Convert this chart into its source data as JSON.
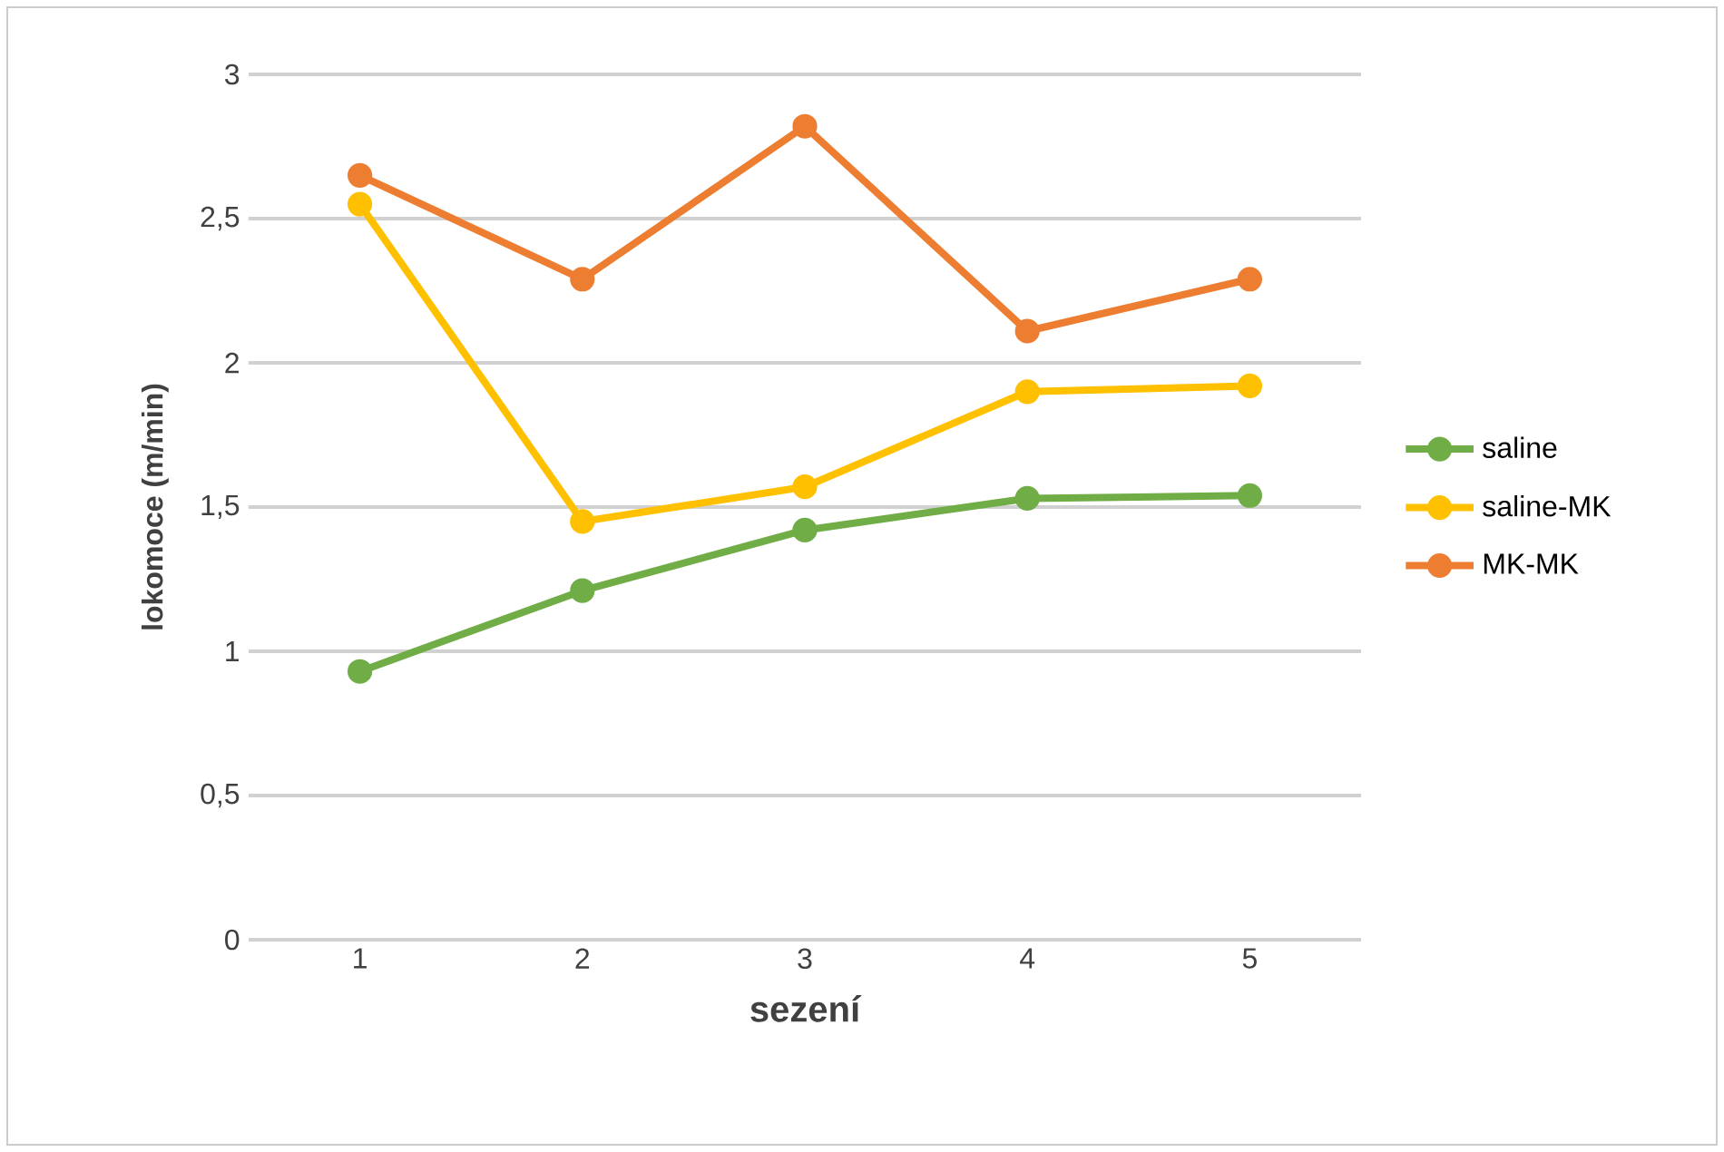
{
  "chart_data": {
    "type": "line",
    "xlabel": "sezení",
    "ylabel": "lokomoce (m/min)",
    "categories": [
      "1",
      "2",
      "3",
      "4",
      "5"
    ],
    "series": [
      {
        "name": "saline",
        "color": "#70ad47",
        "values": [
          0.93,
          1.21,
          1.42,
          1.53,
          1.54
        ]
      },
      {
        "name": "saline-MK",
        "color": "#ffc000",
        "values": [
          2.55,
          1.45,
          1.57,
          1.9,
          1.92
        ]
      },
      {
        "name": "MK-MK",
        "color": "#ed7d31",
        "values": [
          2.65,
          2.29,
          2.82,
          2.11,
          2.29
        ]
      }
    ],
    "ylim": [
      0,
      3
    ],
    "yticks": [
      {
        "value": 0,
        "label": "0"
      },
      {
        "value": 0.5,
        "label": "0,5"
      },
      {
        "value": 1,
        "label": "1"
      },
      {
        "value": 1.5,
        "label": "1,5"
      },
      {
        "value": 2,
        "label": "2"
      },
      {
        "value": 2.5,
        "label": "2,5"
      },
      {
        "value": 3,
        "label": "3"
      }
    ],
    "grid": "y",
    "legend": "right",
    "marker": "circle",
    "line_style": "solid"
  }
}
